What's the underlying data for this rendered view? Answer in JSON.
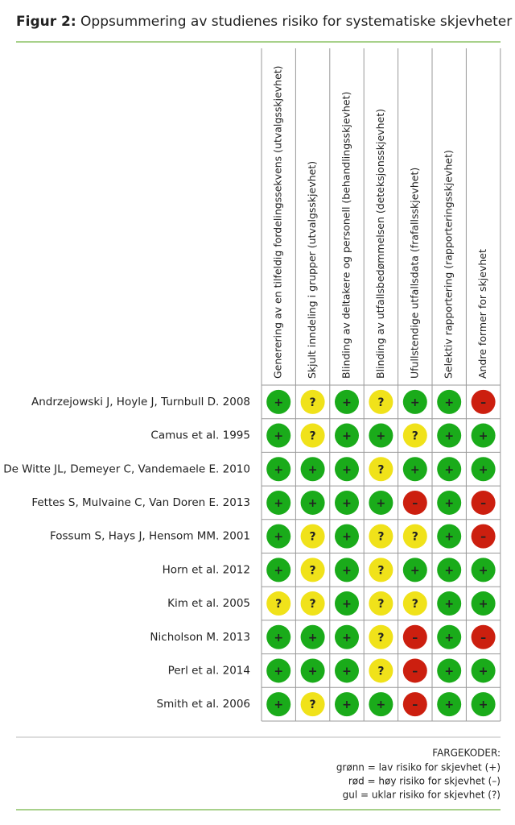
{
  "header": {
    "label": "Figur 2:",
    "title": "Oppsummering av studienes risiko for systematiske skjevheter"
  },
  "table": {
    "columns": [
      "Generering av en tilfeldig fordelingssekvens (utvalgsskjevhet)",
      "Skjult inndeling i grupper (utvalgsskjevhet)",
      "Blinding av deltakere og personell (behandlingsskjevhet)",
      "Blinding av utfallsbedømmelsen (deteksjonsskjevhet)",
      "Ufullstendige utfallsdata (frafallsskjevhet)",
      "Selektiv rapportering (rapporteringsskjevhet)",
      "Andre former for skjevhet"
    ],
    "rows": [
      {
        "study": "Andrzejowski J, Hoyle J, Turnbull D. 2008",
        "ratings": [
          "+",
          "?",
          "+",
          "?",
          "+",
          "+",
          "–"
        ]
      },
      {
        "study": "Camus et al. 1995",
        "ratings": [
          "+",
          "?",
          "+",
          "+",
          "?",
          "+",
          "+"
        ]
      },
      {
        "study": "De Witte JL, Demeyer C, Vandemaele E. 2010",
        "ratings": [
          "+",
          "+",
          "+",
          "?",
          "+",
          "+",
          "+"
        ]
      },
      {
        "study": "Fettes S, Mulvaine C, Van Doren E. 2013",
        "ratings": [
          "+",
          "+",
          "+",
          "+",
          "–",
          "+",
          "–"
        ]
      },
      {
        "study": "Fossum S, Hays J, Hensom MM. 2001",
        "ratings": [
          "+",
          "?",
          "+",
          "?",
          "?",
          "+",
          "–"
        ]
      },
      {
        "study": "Horn et al. 2012",
        "ratings": [
          "+",
          "?",
          "+",
          "?",
          "+",
          "+",
          "+"
        ]
      },
      {
        "study": "Kim et al. 2005",
        "ratings": [
          "?",
          "?",
          "+",
          "?",
          "?",
          "+",
          "+"
        ]
      },
      {
        "study": "Nicholson M. 2013",
        "ratings": [
          "+",
          "+",
          "+",
          "?",
          "–",
          "+",
          "–"
        ]
      },
      {
        "study": "Perl et al. 2014",
        "ratings": [
          "+",
          "+",
          "+",
          "?",
          "–",
          "+",
          "+"
        ]
      },
      {
        "study": "Smith et al. 2006",
        "ratings": [
          "+",
          "?",
          "+",
          "+",
          "–",
          "+",
          "+"
        ]
      }
    ]
  },
  "legend": {
    "heading": "FARGEKODER:",
    "items": [
      {
        "label": "grønn = lav risiko for skjevhet (+)",
        "symbol": "+",
        "color": "#1aab1a"
      },
      {
        "label": "rød = høy risiko for skjevhet (–)",
        "symbol": "–",
        "color": "#cc1f0f"
      },
      {
        "label": "gul = uklar risiko for skjevhet (?)",
        "symbol": "?",
        "color": "#f0e21a"
      }
    ]
  }
}
